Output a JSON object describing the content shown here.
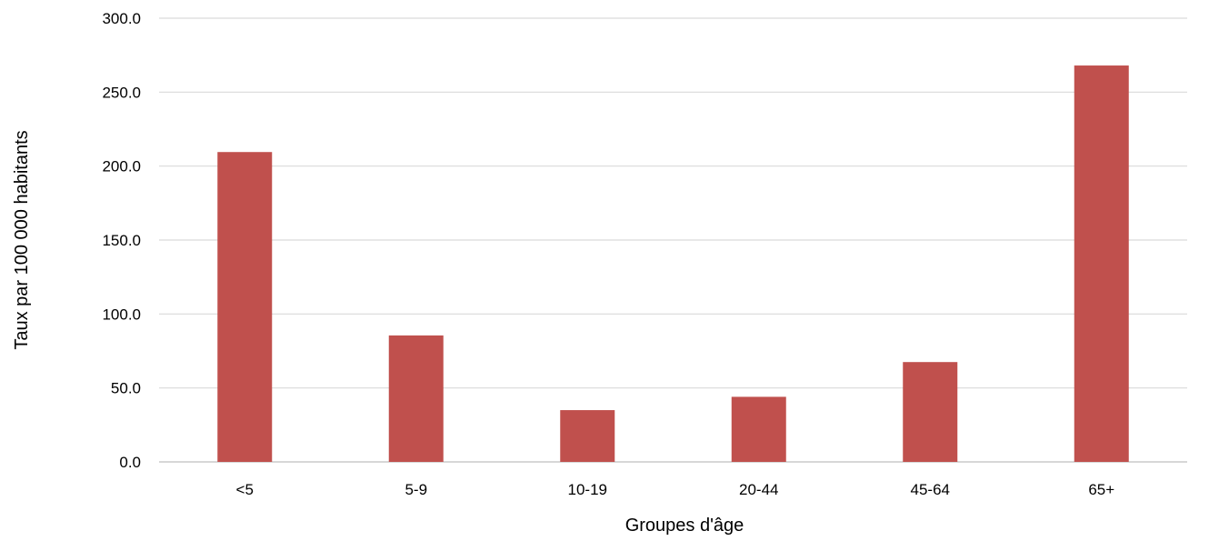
{
  "chart_data": {
    "type": "bar",
    "title": "",
    "xlabel": "Groupes d'âge",
    "ylabel": "Taux par 100 000 habitants",
    "categories": [
      "<5",
      "5-9",
      "10-19",
      "20-44",
      "45-64",
      "65+"
    ],
    "series": [
      {
        "values": [
          209.5,
          85.5,
          35.0,
          44.0,
          67.5,
          268.0
        ]
      }
    ],
    "ylim": [
      0,
      300
    ],
    "yticks": [
      0,
      50,
      100,
      150,
      200,
      250,
      300
    ],
    "ytick_labels": [
      "0.0",
      "50.0",
      "100.0",
      "150.0",
      "200.0",
      "250.0",
      "300.0"
    ],
    "grid": "horizontal",
    "legend": "none",
    "colors": {
      "bar": "#c0504d",
      "grid": "#d9d9d9",
      "axis": "#bfbfbf"
    }
  }
}
